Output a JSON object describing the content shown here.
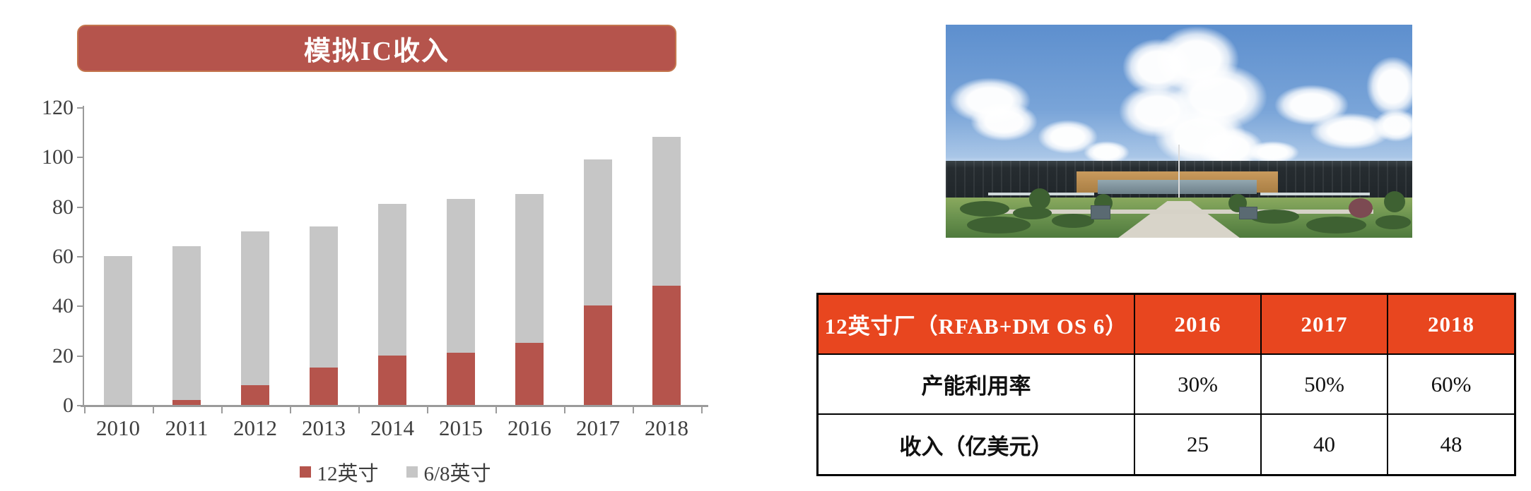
{
  "chart_data": {
    "type": "bar",
    "stacked": true,
    "title": "模拟IC收入",
    "categories": [
      "2010",
      "2011",
      "2012",
      "2013",
      "2014",
      "2015",
      "2016",
      "2017",
      "2018"
    ],
    "series": [
      {
        "name": "12英寸",
        "color": "#b5544c",
        "values": [
          0,
          2,
          8,
          15,
          20,
          21,
          25,
          40,
          48
        ]
      },
      {
        "name": "6/8英寸",
        "color": "#c6c6c6",
        "values": [
          60,
          62,
          62,
          57,
          61,
          62,
          60,
          59,
          60
        ]
      }
    ],
    "stack_totals": [
      60,
      64,
      70,
      72,
      81,
      83,
      85,
      99,
      108
    ],
    "xlabel": "",
    "ylabel": "",
    "ylim": [
      0,
      120
    ],
    "yticks": [
      0,
      20,
      40,
      60,
      80,
      100,
      120
    ],
    "grid": false,
    "legend_position": "bottom",
    "axis_color": "#9b9b9b",
    "tick_label_color": "#3f3f3f",
    "title_box_color": "#b5544c"
  },
  "table": {
    "header": [
      "12英寸厂（RFAB+DM OS 6）",
      "2016",
      "2017",
      "2018"
    ],
    "rows": [
      [
        "产能利用率",
        "30%",
        "50%",
        "60%"
      ],
      [
        "收入（亿美元）",
        "25",
        "40",
        "48"
      ]
    ],
    "header_bg": "#e8461f",
    "header_text_color": "#ffffff",
    "border_color": "#000000"
  }
}
